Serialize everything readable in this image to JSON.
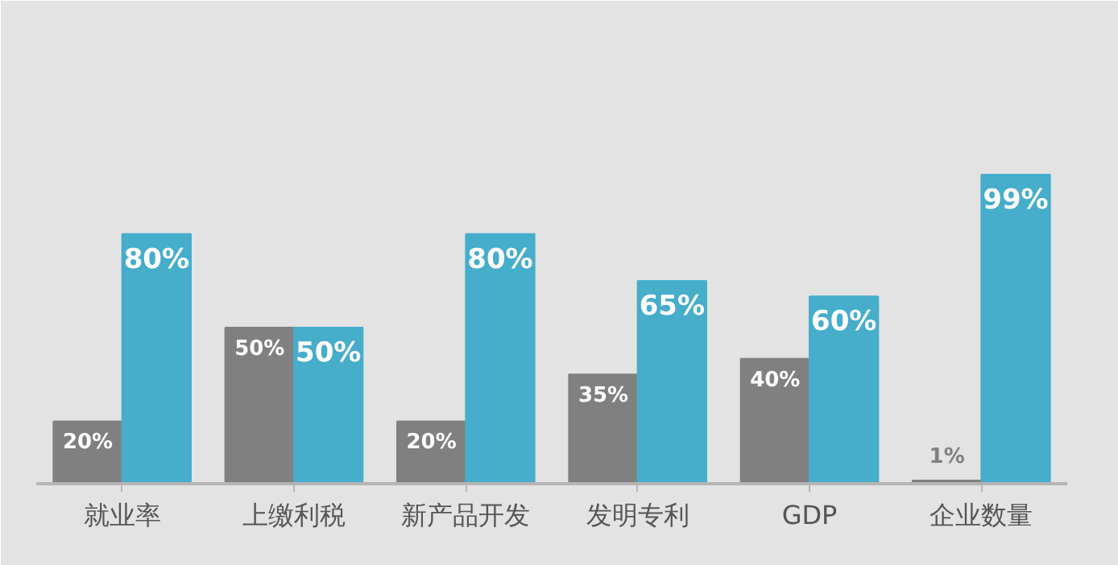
{
  "chart_data": {
    "type": "bar",
    "categories": [
      "就业率",
      "上缴利税",
      "新产品开发",
      "发明专利",
      "GDP",
      "企业数量"
    ],
    "series": [
      {
        "color": "#808080",
        "values": [
          20,
          50,
          20,
          35,
          40,
          1
        ],
        "value_labels": [
          "20%",
          "50%",
          "20%",
          "35%",
          "40%",
          "1%"
        ]
      },
      {
        "color": "#46adcb",
        "values": [
          80,
          50,
          80,
          65,
          60,
          99
        ],
        "value_labels": [
          "80%",
          "50%",
          "80%",
          "65%",
          "60%",
          "99%"
        ]
      }
    ]
  }
}
